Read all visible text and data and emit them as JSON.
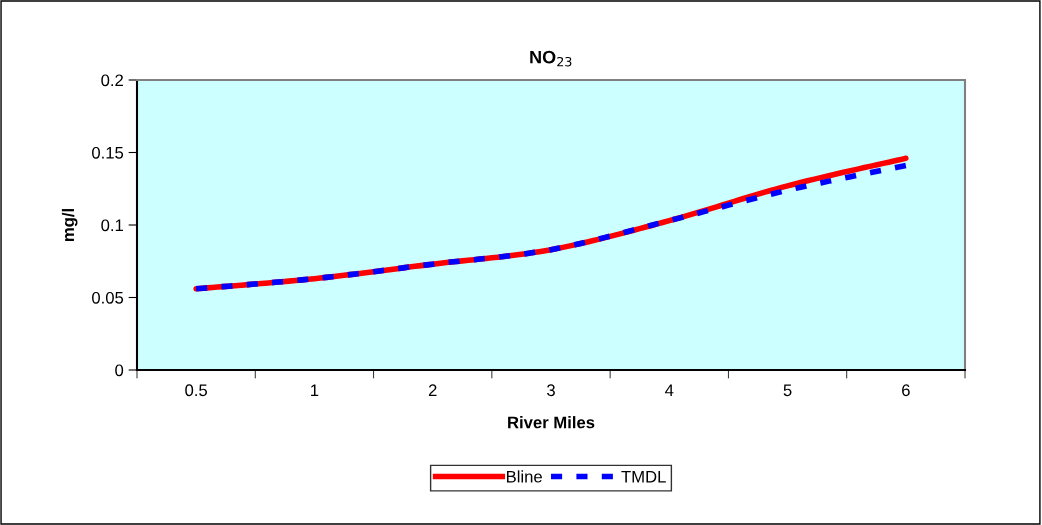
{
  "chart_data": {
    "type": "line",
    "title": "NO$_{23}$",
    "xlabel": "River Miles",
    "ylabel": "mg/l",
    "categories": [
      "0.5",
      "1",
      "2",
      "3",
      "4",
      "5",
      "6"
    ],
    "series": [
      {
        "name": "Bline",
        "color": "#ff0000",
        "line_style": "solid",
        "values": [
          0.056,
          0.063,
          0.073,
          0.083,
          0.103,
          0.127,
          0.146
        ]
      },
      {
        "name": "TMDL",
        "color": "#0000ff",
        "line_style": "dashed",
        "values": [
          0.056,
          0.063,
          0.073,
          0.083,
          0.103,
          0.124,
          0.141
        ]
      }
    ],
    "ylim": [
      0,
      0.2
    ],
    "yticks": [
      0,
      0.05,
      0.1,
      0.15,
      0.2
    ],
    "grid": false,
    "legend": "bottom",
    "marker": "none"
  }
}
